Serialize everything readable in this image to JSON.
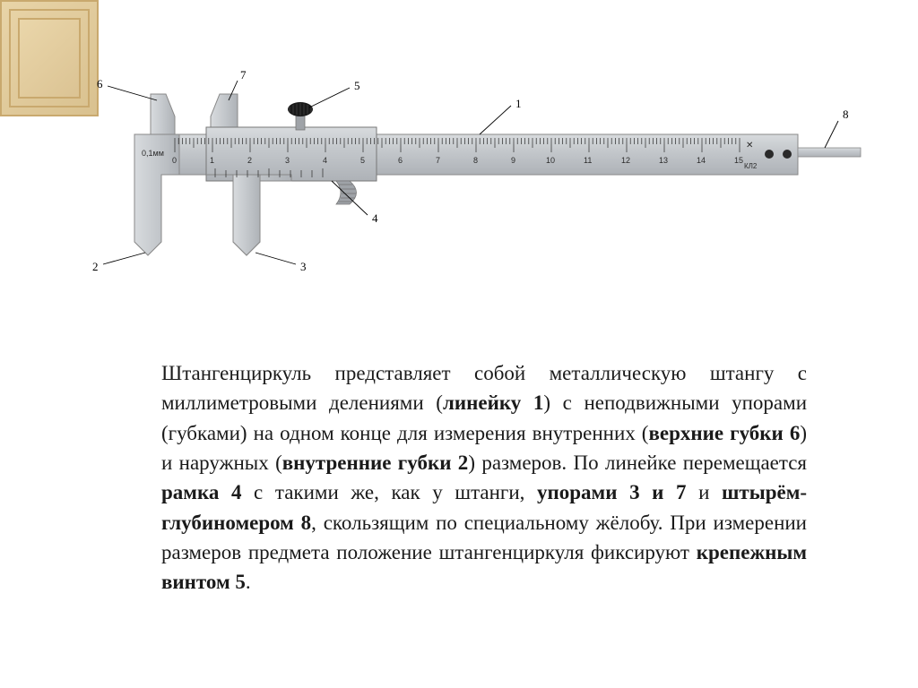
{
  "diagram": {
    "labels": {
      "l1": "1",
      "l2": "2",
      "l3": "3",
      "l4": "4",
      "l5": "5",
      "l6": "6",
      "l7": "7",
      "l8": "8"
    },
    "scale": {
      "precision_mark": "0,1мм",
      "ticks": [
        "0",
        "1",
        "2",
        "3",
        "4",
        "5",
        "6",
        "7",
        "8",
        "9",
        "10",
        "11",
        "12",
        "13",
        "14",
        "15"
      ],
      "side_mark": "КЛ2"
    },
    "colors": {
      "metal_light": "#cfd2d5",
      "metal_mid": "#b8bcc0",
      "metal_dark": "#9fa3a8",
      "tick_color": "#2a2a2a",
      "label_color": "#000000",
      "leader_color": "#000000",
      "background": "#ffffff",
      "knob_color": "#1a1a1a"
    },
    "font": {
      "label_size": 13,
      "tick_size": 10
    }
  },
  "description": {
    "parts": [
      {
        "text": "Штангенциркуль представляет собой металлическую штангу с миллиметровыми делениями (",
        "bold": false
      },
      {
        "text": "линейку 1",
        "bold": true
      },
      {
        "text": ") с неподвижными упорами (губками) на одном конце для измерения внутренних (",
        "bold": false
      },
      {
        "text": "верхние губки 6",
        "bold": true
      },
      {
        "text": ") и наружных (",
        "bold": false
      },
      {
        "text": "внутренние губки 2",
        "bold": true
      },
      {
        "text": ") размеров. По линейке перемещается ",
        "bold": false
      },
      {
        "text": "рамка 4",
        "bold": true
      },
      {
        "text": " с такими же, как у штанги, ",
        "bold": false
      },
      {
        "text": "упорами 3 и 7",
        "bold": true
      },
      {
        "text": " и ",
        "bold": false
      },
      {
        "text": "штырём-глубиномером 8",
        "bold": true
      },
      {
        "text": ", скользящим по специальному жёлобу. При измерении размеров предмета положение штангенциркуля фиксируют ",
        "bold": false
      },
      {
        "text": "крепежным винтом 5",
        "bold": true
      },
      {
        "text": ".",
        "bold": false
      }
    ]
  }
}
